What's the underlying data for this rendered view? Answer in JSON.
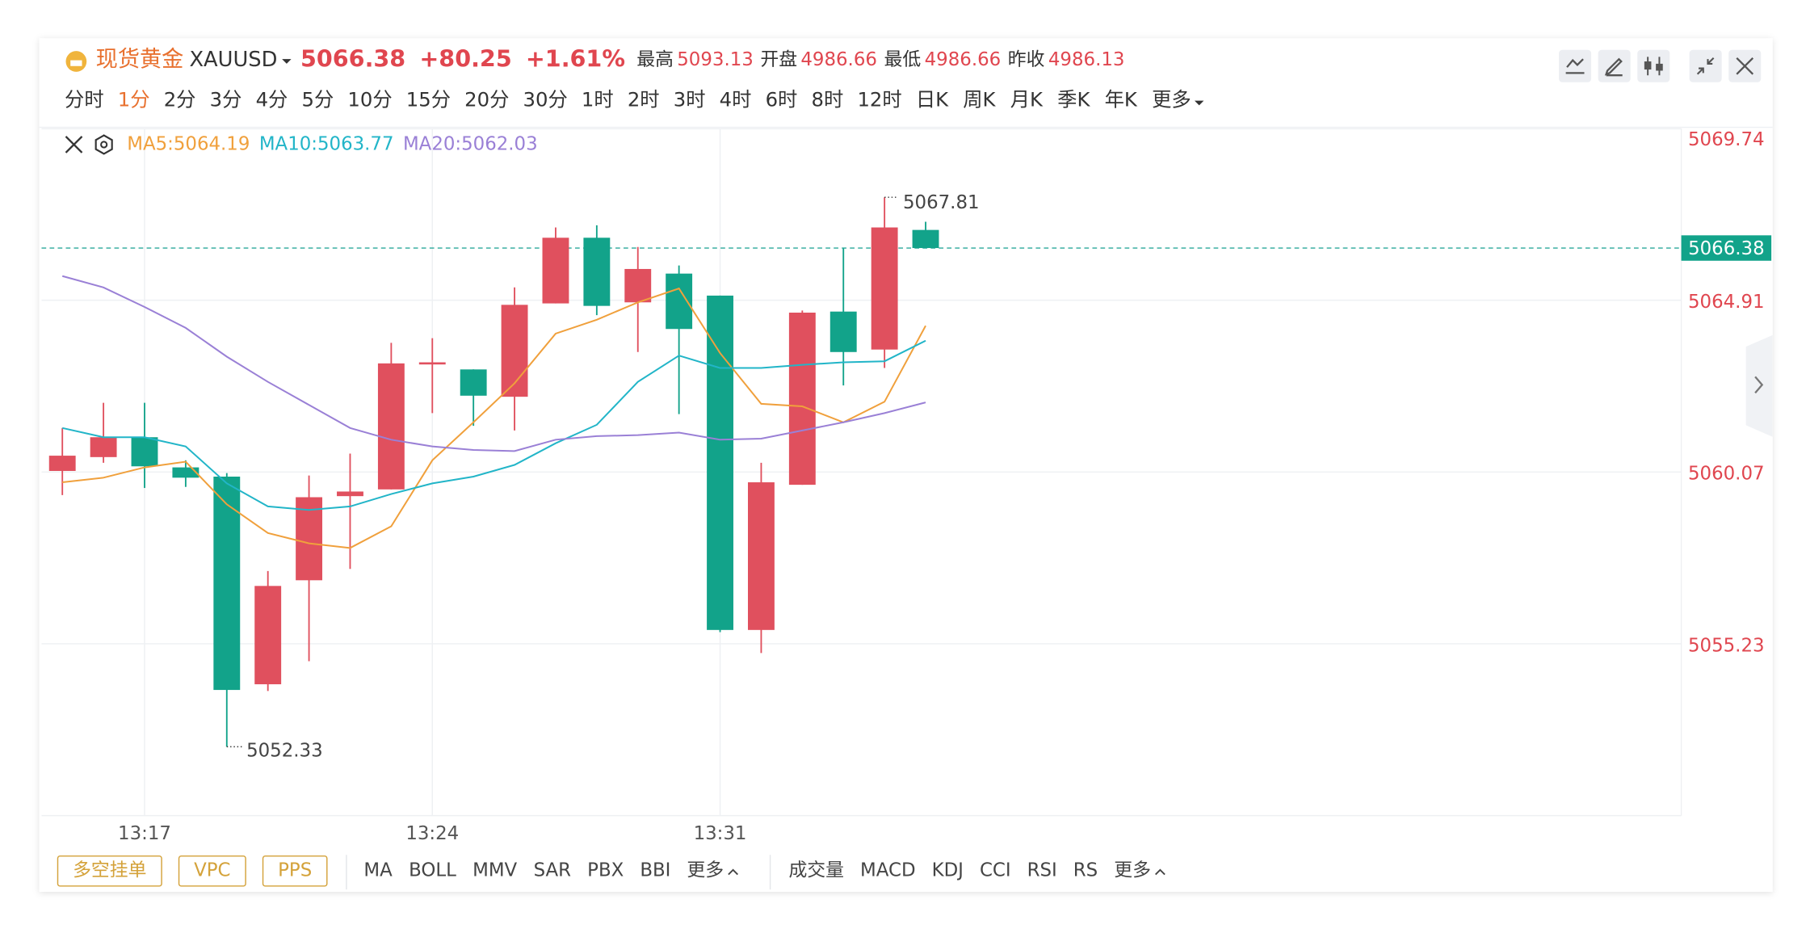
{
  "header": {
    "name": "现货黄金",
    "symbol": "XAUUSD",
    "price": "5066.38",
    "change": "+80.25",
    "change_pct": "+1.61%",
    "stats": [
      {
        "label": "最高",
        "value": "5093.13"
      },
      {
        "label": "开盘",
        "value": "4986.66"
      },
      {
        "label": "最低",
        "value": "4986.66"
      },
      {
        "label": "昨收",
        "value": "4986.13"
      }
    ]
  },
  "periods": [
    "分时",
    "1分",
    "2分",
    "3分",
    "4分",
    "5分",
    "10分",
    "15分",
    "20分",
    "30分",
    "1时",
    "2时",
    "3时",
    "4时",
    "6时",
    "8时",
    "12时",
    "日K",
    "周K",
    "月K",
    "季K",
    "年K",
    "更多"
  ],
  "active_period": 1,
  "indicators": {
    "buttons": [
      "多空挂单",
      "VPC",
      "PPS"
    ],
    "main": [
      "MA",
      "BOLL",
      "MMV",
      "SAR",
      "PBX",
      "BBI",
      "更多"
    ],
    "sub": [
      "成交量",
      "MACD",
      "KDJ",
      "CCI",
      "RSI",
      "RS",
      "更多"
    ]
  },
  "chart_data": {
    "type": "candlestick",
    "categories": [
      null,
      null,
      "13:17",
      null,
      null,
      null,
      null,
      null,
      null,
      "13:24",
      null,
      null,
      null,
      null,
      null,
      null,
      "13:31",
      null,
      null,
      null,
      null,
      null
    ],
    "open": [
      5060.1,
      5060.49,
      5061.05,
      5060.2,
      5059.94,
      5054.09,
      5057.02,
      5059.39,
      5059.58,
      5063.1,
      5062.96,
      5062.19,
      5064.82,
      5066.67,
      5064.85,
      5065.66,
      5065.04,
      5055.62,
      5059.71,
      5064.59,
      5063.52,
      5066.89
    ],
    "high": [
      5061.31,
      5062.02,
      5062.02,
      5060.4,
      5060.04,
      5057.28,
      5059.97,
      5060.59,
      5063.71,
      5063.84,
      5062.96,
      5065.27,
      5066.96,
      5067.02,
      5066.41,
      5065.89,
      5065.04,
      5060.33,
      5064.62,
      5066.37,
      5067.81,
      5067.12
    ],
    "low": [
      5059.42,
      5060.33,
      5059.62,
      5059.65,
      5052.33,
      5053.9,
      5054.74,
      5057.34,
      5059.58,
      5061.73,
      5061.37,
      5061.24,
      5064.82,
      5064.49,
      5063.45,
      5061.7,
      5055.56,
      5054.97,
      5059.71,
      5062.51,
      5063.0,
      5066.38
    ],
    "close": [
      5060.53,
      5061.05,
      5060.23,
      5059.91,
      5053.93,
      5056.86,
      5059.36,
      5059.52,
      5063.13,
      5063.16,
      5062.22,
      5064.78,
      5066.67,
      5064.75,
      5065.79,
      5064.1,
      5055.62,
      5059.78,
      5064.56,
      5063.45,
      5066.96,
      5066.38
    ],
    "up_color": "#e0505e",
    "down_color": "#12a38a",
    "series": [
      {
        "name": "MA5:5064.19",
        "color": "#f0a03c",
        "values": [
          5059.78,
          5059.91,
          5060.2,
          5060.36,
          5059.16,
          5058.35,
          5058.06,
          5057.93,
          5058.54,
          5060.4,
          5061.47,
          5062.57,
          5063.97,
          5064.36,
          5064.85,
          5065.24,
          5063.42,
          5061.99,
          5061.92,
          5061.47,
          5062.05,
          5064.19
        ]
      },
      {
        "name": "MA10:5063.77",
        "color": "#22b5c8",
        "values": [
          5061.31,
          5061.05,
          5061.05,
          5060.79,
          5059.75,
          5059.1,
          5059.0,
          5059.1,
          5059.45,
          5059.75,
          5059.94,
          5060.27,
          5060.88,
          5061.4,
          5062.61,
          5063.35,
          5063.0,
          5063.0,
          5063.09,
          5063.16,
          5063.19,
          5063.77
        ]
      },
      {
        "name": "MA20:5062.03",
        "color": "#9a80d6",
        "values": [
          5065.59,
          5065.27,
          5064.72,
          5064.13,
          5063.32,
          5062.61,
          5061.96,
          5061.31,
          5060.98,
          5060.79,
          5060.69,
          5060.66,
          5060.98,
          5061.08,
          5061.11,
          5061.18,
          5060.98,
          5061.01,
          5061.24,
          5061.47,
          5061.73,
          5062.03
        ]
      }
    ],
    "last_price": 5066.38,
    "ylim": [
      5050.39,
      5069.75
    ],
    "yticks": [
      5055.23,
      5060.07,
      5064.91,
      5069.74
    ],
    "grid": true
  }
}
